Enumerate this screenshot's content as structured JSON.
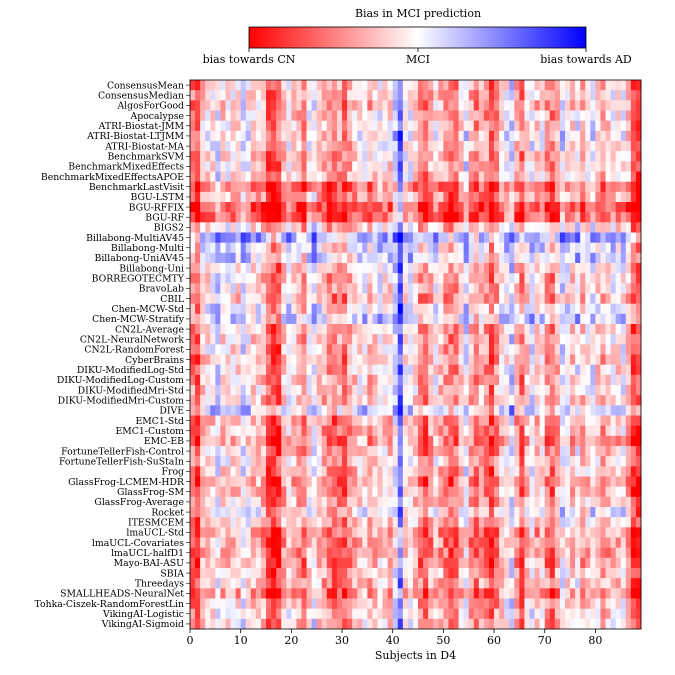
{
  "chart_data": {
    "type": "heatmap",
    "title": "Bias in MCI prediction",
    "xlabel": "Subjects in D4",
    "ylabel": "",
    "x_range": [
      0,
      89
    ],
    "x_ticks": [
      0,
      10,
      20,
      30,
      40,
      50,
      60,
      70,
      80
    ],
    "value_range": [
      -1,
      1
    ],
    "colorscale": {
      "low_color": "#ff0000",
      "mid_color": "#ffffff",
      "high_color": "#0000ff",
      "low_label": "bias towards CN",
      "mid_label": "MCI",
      "high_label": "bias towards AD"
    },
    "grid": false,
    "rows": [
      "ConsensusMean",
      "ConsensusMedian",
      "AlgosForGood",
      "Apocalypse",
      "ATRI-Biostat-JMM",
      "ATRI-Biostat-LTJMM",
      "ATRI-Biostat-MA",
      "BenchmarkSVM",
      "BenchmarkMixedEffects",
      "BenchmarkMixedEffectsAPOE",
      "BenchmarkLastVisit",
      "BGU-LSTM",
      "BGU-RFFIX",
      "BGU-RF",
      "BIGS2",
      "Billabong-MultiAV45",
      "Billabong-Multi",
      "Billabong-UniAV45",
      "Billabong-Uni",
      "BORREGOTECMTY",
      "BravoLab",
      "CBIL",
      "Chen-MCW-Std",
      "Chen-MCW-Stratify",
      "CN2L-Average",
      "CN2L-NeuralNetwork",
      "CN2L-RandomForest",
      "CyberBrains",
      "DIKU-ModifiedLog-Std",
      "DIKU-ModifiedLog-Custom",
      "DIKU-ModifiedMri-Std",
      "DIKU-ModifiedMri-Custom",
      "DIVE",
      "EMC1-Std",
      "EMC1-Custom",
      "EMC-EB",
      "FortuneTellerFish-Control",
      "FortuneTellerFish-SuStaIn",
      "Frog",
      "GlassFrog-LCMEM-HDR",
      "GlassFrog-SM",
      "GlassFrog-Average",
      "Rocket",
      "ITESMCEM",
      "lmaUCL-Std",
      "lmaUCL-Covariates",
      "lmaUCL-halfD1",
      "Mayo-BAI-ASU",
      "SBIA",
      "Threedays",
      "SMALLHEADS-NeuralNet",
      "Tohka-Ciszek-RandomForestLin",
      "VikingAI-Logistic",
      "VikingAI-Sigmoid"
    ],
    "subject_bias_common": [
      -0.55,
      -0.75,
      -0.25,
      -0.15,
      -0.1,
      0.05,
      -0.2,
      -0.1,
      -0.15,
      -0.2,
      0.05,
      -0.1,
      -0.25,
      -0.15,
      -0.3,
      -0.7,
      -0.8,
      -0.75,
      -0.3,
      -0.1,
      -0.2,
      -0.35,
      -0.5,
      -0.1,
      0.05,
      -0.2,
      -0.35,
      -0.5,
      -0.55,
      -0.45,
      -0.6,
      -0.4,
      -0.25,
      -0.15,
      -0.1,
      -0.35,
      -0.2,
      -0.05,
      -0.15,
      -0.2,
      0.1,
      0.55,
      -0.1,
      -0.05,
      -0.25,
      -0.5,
      -0.6,
      -0.35,
      -0.1,
      -0.3,
      -0.45,
      -0.6,
      -0.5,
      -0.2,
      0.05,
      -0.35,
      -0.55,
      -0.3,
      -0.5,
      -0.7,
      -0.45,
      -0.2,
      -0.05,
      0.15,
      -0.35,
      -0.6,
      -0.2,
      0.0,
      -0.3,
      -0.15,
      -0.45,
      -0.6,
      -0.3,
      0.05,
      -0.1,
      -0.25,
      0.0,
      -0.3,
      -0.15,
      0.0,
      -0.2,
      -0.35,
      -0.25,
      -0.1,
      -0.2,
      -0.05,
      -0.3,
      -0.75,
      -0.8
    ],
    "row_bias_offsets": [
      0.05,
      0.05,
      0.0,
      0.05,
      0.1,
      0.15,
      0.1,
      0.05,
      0.05,
      0.05,
      -0.3,
      -0.15,
      -0.45,
      -0.4,
      0.1,
      0.55,
      0.3,
      0.35,
      0.1,
      0.05,
      0.1,
      0.0,
      0.25,
      0.35,
      0.05,
      0.05,
      0.05,
      0.0,
      0.05,
      0.05,
      0.1,
      0.05,
      0.35,
      -0.1,
      -0.05,
      -0.15,
      0.0,
      0.05,
      0.0,
      -0.15,
      -0.05,
      0.0,
      0.15,
      0.05,
      -0.15,
      -0.15,
      -0.15,
      -0.1,
      0.0,
      0.0,
      -0.2,
      0.0,
      0.05,
      0.05
    ]
  }
}
